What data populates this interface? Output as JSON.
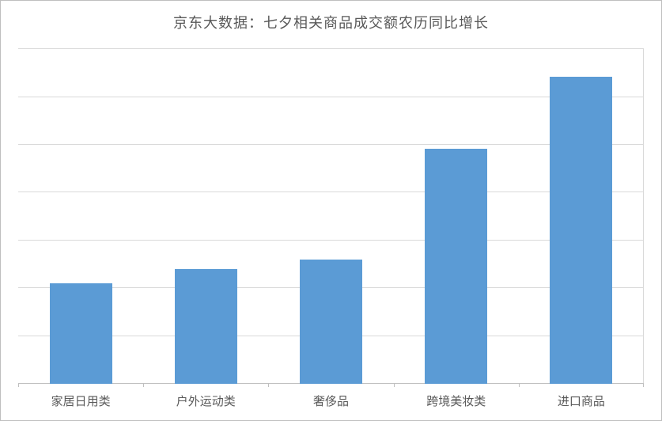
{
  "chart": {
    "type": "bar",
    "title": "京东大数据：七夕相关商品成交额农历同比增长",
    "title_fontsize": 18,
    "title_color": "#595959",
    "categories": [
      "家居日用类",
      "户外运动类",
      "奢侈品",
      "跨境美妆类",
      "进口商品"
    ],
    "values": [
      42,
      48,
      52,
      98,
      128
    ],
    "ylim": [
      0,
      140
    ],
    "bar_colors": [
      "#5b9bd5",
      "#5b9bd5",
      "#5b9bd5",
      "#5b9bd5",
      "#5b9bd5"
    ],
    "bar_width": 0.5,
    "background_color": "#ffffff",
    "plot_border_color": "#d9d9d9",
    "outer_border_color": "#bfbfbf",
    "axis_color": "#bfbfbf",
    "grid_color": "#d9d9d9",
    "gridlines_pct": [
      14.3,
      28.6,
      42.9,
      57.1,
      71.4,
      85.7
    ],
    "label_fontsize": 15,
    "label_color": "#595959"
  }
}
